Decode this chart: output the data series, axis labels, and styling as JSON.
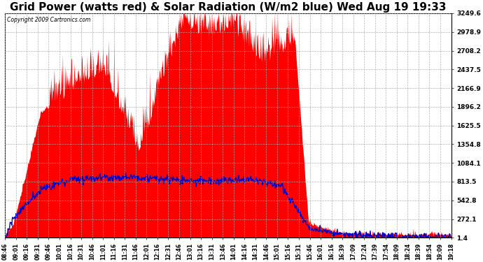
{
  "title": "Grid Power (watts red) & Solar Radiation (W/m2 blue) Wed Aug 19 19:33",
  "copyright": "Copyright 2009 Cartronics.com",
  "title_fontsize": 11,
  "background_color": "#ffffff",
  "plot_bg_color": "#ffffff",
  "yticks": [
    1.4,
    272.1,
    542.8,
    813.5,
    1084.1,
    1354.8,
    1625.5,
    1896.2,
    2166.9,
    2437.5,
    2708.2,
    2978.9,
    3249.6
  ],
  "ymin": 1.4,
  "ymax": 3249.6,
  "xtick_labels": [
    "08:46",
    "09:01",
    "09:16",
    "09:31",
    "09:46",
    "10:01",
    "10:16",
    "10:31",
    "10:46",
    "11:01",
    "11:16",
    "11:31",
    "11:46",
    "12:01",
    "12:16",
    "12:31",
    "12:46",
    "13:01",
    "13:16",
    "13:31",
    "13:46",
    "14:01",
    "14:16",
    "14:31",
    "14:46",
    "15:01",
    "15:16",
    "15:31",
    "15:46",
    "16:01",
    "16:16",
    "16:39",
    "17:09",
    "17:24",
    "17:39",
    "17:54",
    "18:09",
    "18:24",
    "18:39",
    "18:54",
    "19:09",
    "19:18"
  ],
  "red_fill_color": "#ff0000",
  "blue_line_color": "#0000cc",
  "grid_color": "#aaaaaa",
  "spike_noise_scale": 250,
  "blue_noise_scale": 30
}
